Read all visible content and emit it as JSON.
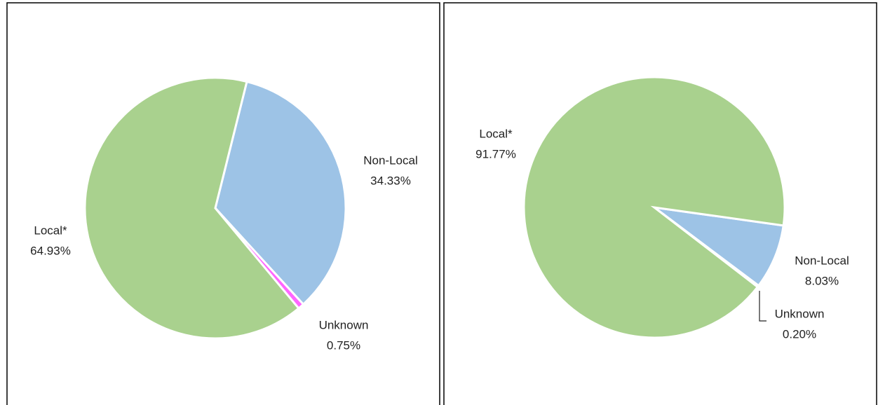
{
  "chart_data": [
    {
      "type": "pie",
      "categories": [
        "Non-Local",
        "Unknown",
        "Local*"
      ],
      "values": [
        34.33,
        0.75,
        64.93
      ],
      "value_labels": [
        "34.33%",
        "0.75%",
        "64.93%"
      ],
      "colors": [
        "#9dc3e6",
        "#ff66ff",
        "#a9d18e"
      ]
    },
    {
      "type": "pie",
      "categories": [
        "Non-Local",
        "Unknown",
        "Local*"
      ],
      "values": [
        8.03,
        0.2,
        91.77
      ],
      "value_labels": [
        "8.03%",
        "0.20%",
        "91.77%"
      ],
      "colors": [
        "#9dc3e6",
        "#ff66ff",
        "#a9d18e"
      ]
    }
  ]
}
